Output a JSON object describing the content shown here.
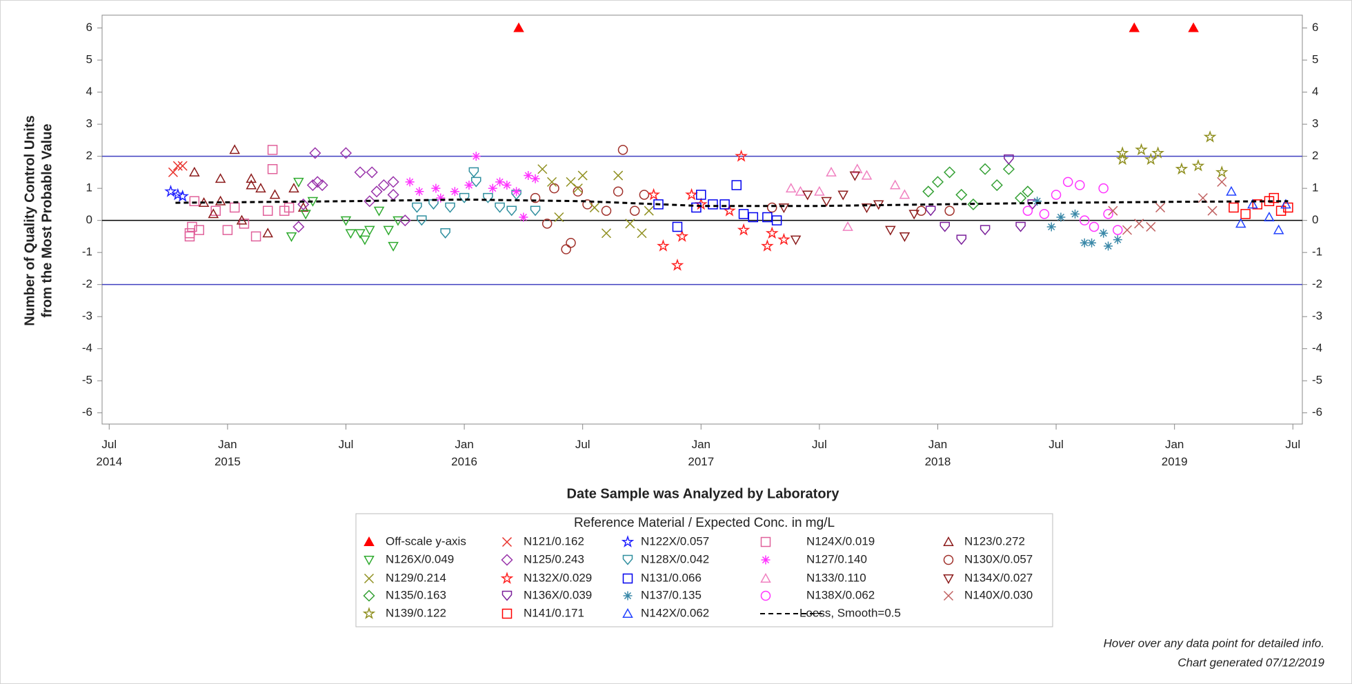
{
  "chart_data": {
    "type": "scatter",
    "y_label": [
      "Number of Quality Control Units",
      "from the Most Probable Value"
    ],
    "x_label": "Date Sample was Analyzed by Laboratory",
    "legend_title": "Reference Material / Expected Conc. in mg/L",
    "notes": [
      "Hover over any data point for detailed info.",
      "Chart generated 07/12/2019"
    ],
    "xlim": [
      2014.47,
      2019.54
    ],
    "ylim": [
      -6.35,
      6.4
    ],
    "xticks": [
      {
        "value": 2014.5,
        "label": "Jul\n2014"
      },
      {
        "value": 2015,
        "label": "Jan\n2015"
      },
      {
        "value": 2015.5,
        "label": "Jul"
      },
      {
        "value": 2016,
        "label": "Jan\n2016"
      },
      {
        "value": 2016.5,
        "label": "Jul"
      },
      {
        "value": 2017,
        "label": "Jan\n2017"
      },
      {
        "value": 2017.5,
        "label": "Jul"
      },
      {
        "value": 2018,
        "label": "Jan\n2018"
      },
      {
        "value": 2018.5,
        "label": "Jul"
      },
      {
        "value": 2019,
        "label": "Jan\n2019"
      },
      {
        "value": 2019.5,
        "label": "Jul"
      }
    ],
    "yticks": [
      -6,
      -5,
      -4,
      -3,
      -2,
      -1,
      0,
      1,
      2,
      3,
      4,
      5,
      6
    ],
    "hlines": [
      {
        "value": 2,
        "color": "#3f3fbf"
      },
      {
        "value": -2,
        "color": "#3f3fbf"
      },
      {
        "value": 0,
        "color": "#000000"
      }
    ],
    "series": [
      {
        "name": "Off-scale y-axis",
        "marker": "triangle-filled",
        "color": "#ff0000",
        "x": [
          2016.23,
          2018.83,
          2019.08
        ],
        "values": [
          6,
          6,
          6
        ]
      },
      {
        "name": "N121/0.162",
        "marker": "x",
        "color": "#e8302a",
        "x": [
          2014.77,
          2014.79,
          2014.81
        ],
        "values": [
          1.5,
          1.7,
          1.7
        ]
      },
      {
        "name": "N122X/0.057",
        "marker": "star",
        "color": "#1f1fff",
        "x": [
          2014.76,
          2014.79,
          2014.81
        ],
        "values": [
          0.9,
          0.8,
          0.75
        ]
      },
      {
        "name": "N124X/0.019",
        "marker": "square",
        "color": "#e0609a",
        "x": [
          2014.84,
          2014.84,
          2014.85,
          2014.86,
          2014.88,
          2014.95,
          2015.0,
          2015.03,
          2015.07,
          2015.12,
          2015.17,
          2015.19,
          2015.19,
          2015.24,
          2015.26
        ],
        "values": [
          -0.5,
          -0.4,
          -0.2,
          0.6,
          -0.3,
          0.3,
          -0.3,
          0.4,
          -0.1,
          -0.5,
          0.3,
          2.2,
          1.6,
          0.3,
          0.4
        ]
      },
      {
        "name": "N123/0.272",
        "marker": "triangle",
        "color": "#8b1a1a",
        "x": [
          2014.86,
          2014.9,
          2014.94,
          2014.97,
          2014.97,
          2015.03,
          2015.06,
          2015.1,
          2015.1,
          2015.14,
          2015.17,
          2015.2,
          2015.28,
          2015.32
        ],
        "values": [
          1.5,
          0.55,
          0.2,
          0.6,
          1.3,
          2.2,
          0.0,
          1.3,
          1.1,
          1.0,
          -0.4,
          0.8,
          1.0,
          0.4
        ]
      },
      {
        "name": "N126X/0.049",
        "marker": "triangle-down",
        "color": "#2eaa2e",
        "x": [
          2015.27,
          2015.3,
          2015.33,
          2015.36,
          2015.5,
          2015.52,
          2015.56,
          2015.58,
          2015.6,
          2015.64,
          2015.68,
          2015.7,
          2015.72
        ],
        "values": [
          -0.5,
          1.2,
          0.2,
          0.6,
          0.0,
          -0.4,
          -0.4,
          -0.6,
          -0.3,
          0.3,
          -0.3,
          -0.8,
          0.0
        ]
      },
      {
        "name": "N125/0.243",
        "marker": "diamond",
        "color": "#9933aa",
        "x": [
          2015.3,
          2015.32,
          2015.36,
          2015.37,
          2015.38,
          2015.4,
          2015.5,
          2015.56,
          2015.6,
          2015.61,
          2015.63,
          2015.66,
          2015.7,
          2015.7,
          2015.75
        ],
        "values": [
          -0.2,
          0.5,
          1.1,
          2.1,
          1.2,
          1.1,
          2.1,
          1.5,
          0.6,
          1.5,
          0.9,
          1.1,
          1.2,
          0.8,
          0.0
        ]
      },
      {
        "name": "N128X/0.042",
        "marker": "shield",
        "color": "#2f8f9f",
        "x": [
          2015.8,
          2015.82,
          2015.87,
          2015.92,
          2015.94,
          2016.0,
          2016.04,
          2016.05,
          2016.1,
          2016.15,
          2016.2,
          2016.22,
          2016.3
        ],
        "values": [
          0.4,
          0.0,
          0.5,
          -0.4,
          0.4,
          0.7,
          1.5,
          1.2,
          0.7,
          0.4,
          0.3,
          0.8,
          0.3
        ]
      },
      {
        "name": "N127/0.140",
        "marker": "asterisk",
        "color": "#ff33ff",
        "x": [
          2015.77,
          2015.81,
          2015.88,
          2015.9,
          2015.96,
          2016.02,
          2016.05,
          2016.12,
          2016.15,
          2016.18,
          2016.22,
          2016.25,
          2016.27,
          2016.3
        ],
        "values": [
          1.2,
          0.9,
          1.0,
          0.7,
          0.9,
          1.1,
          2.0,
          1.0,
          1.2,
          1.1,
          0.9,
          0.1,
          1.4,
          1.3
        ]
      },
      {
        "name": "N130X/0.057",
        "marker": "circle",
        "color": "#a0302a",
        "x": [
          2016.3,
          2016.35,
          2016.38,
          2016.43,
          2016.45,
          2016.48,
          2016.52,
          2016.6,
          2016.65,
          2016.67,
          2016.72,
          2016.76,
          2017.3,
          2017.93,
          2018.05
        ],
        "values": [
          0.7,
          -0.1,
          1.0,
          -0.9,
          -0.7,
          0.9,
          0.5,
          0.3,
          0.9,
          2.2,
          0.3,
          0.8,
          0.4,
          0.3,
          0.3
        ]
      },
      {
        "name": "N129/0.214",
        "marker": "x",
        "color": "#8f8f1f",
        "x": [
          2016.33,
          2016.37,
          2016.4,
          2016.45,
          2016.48,
          2016.5,
          2016.55,
          2016.6,
          2016.65,
          2016.7,
          2016.75,
          2016.78
        ],
        "values": [
          1.6,
          1.2,
          0.1,
          1.2,
          1.0,
          1.4,
          0.4,
          -0.4,
          1.4,
          -0.1,
          -0.4,
          0.3
        ]
      },
      {
        "name": "N132X/0.029",
        "marker": "star",
        "color": "#ff2020",
        "x": [
          2016.8,
          2016.84,
          2016.9,
          2016.92,
          2016.96,
          2017.0,
          2017.12,
          2017.17,
          2017.18,
          2017.28,
          2017.3,
          2017.35
        ],
        "values": [
          0.8,
          -0.8,
          -1.4,
          -0.5,
          0.8,
          0.5,
          0.3,
          2.0,
          -0.3,
          -0.8,
          -0.4,
          -0.6
        ]
      },
      {
        "name": "N131/0.066",
        "marker": "square",
        "color": "#0000ee",
        "x": [
          2016.82,
          2016.9,
          2016.98,
          2017.0,
          2017.05,
          2017.1,
          2017.15,
          2017.18,
          2017.22,
          2017.28,
          2017.32
        ],
        "values": [
          0.5,
          -0.2,
          0.4,
          0.8,
          0.5,
          0.5,
          1.1,
          0.2,
          0.1,
          0.1,
          0.0
        ]
      },
      {
        "name": "N133/0.110",
        "marker": "triangle",
        "color": "#f080c0",
        "x": [
          2017.38,
          2017.42,
          2017.5,
          2017.55,
          2017.62,
          2017.66,
          2017.7,
          2017.82,
          2017.86
        ],
        "values": [
          1.0,
          0.9,
          0.9,
          1.5,
          -0.2,
          1.6,
          1.4,
          1.1,
          0.8
        ]
      },
      {
        "name": "N134X/0.027",
        "marker": "triangle-down",
        "color": "#8b1a1a",
        "x": [
          2017.35,
          2017.4,
          2017.45,
          2017.53,
          2017.6,
          2017.65,
          2017.7,
          2017.75,
          2017.8,
          2017.86,
          2017.9
        ],
        "values": [
          0.4,
          -0.6,
          0.8,
          0.6,
          0.8,
          1.4,
          0.4,
          0.5,
          -0.3,
          -0.5,
          0.2
        ]
      },
      {
        "name": "N135/0.163",
        "marker": "diamond",
        "color": "#33a033",
        "x": [
          2017.96,
          2018.0,
          2018.05,
          2018.1,
          2018.15,
          2018.2,
          2018.25,
          2018.3,
          2018.35,
          2018.38
        ],
        "values": [
          0.9,
          1.2,
          1.5,
          0.8,
          0.5,
          1.6,
          1.1,
          1.6,
          0.7,
          0.9
        ]
      },
      {
        "name": "N136X/0.039",
        "marker": "shield",
        "color": "#7a1f9a",
        "x": [
          2017.97,
          2018.03,
          2018.1,
          2018.2,
          2018.3,
          2018.35,
          2018.4
        ],
        "values": [
          0.3,
          -0.2,
          -0.6,
          -0.3,
          1.9,
          -0.2,
          0.5
        ]
      },
      {
        "name": "N137/0.135",
        "marker": "asterisk",
        "color": "#3a88a8",
        "x": [
          2018.42,
          2018.48,
          2018.52,
          2018.58,
          2018.62,
          2018.65,
          2018.7,
          2018.72,
          2018.76
        ],
        "values": [
          0.6,
          -0.2,
          0.1,
          0.2,
          -0.7,
          -0.7,
          -0.4,
          -0.8,
          -0.6
        ]
      },
      {
        "name": "N138X/0.062",
        "marker": "circle",
        "color": "#ff33ff",
        "x": [
          2018.38,
          2018.45,
          2018.5,
          2018.55,
          2018.6,
          2018.62,
          2018.66,
          2018.7,
          2018.72,
          2018.76
        ],
        "values": [
          0.3,
          0.2,
          0.8,
          1.2,
          1.1,
          0.0,
          -0.2,
          1.0,
          0.2,
          -0.3
        ]
      },
      {
        "name": "N140X/0.030",
        "marker": "x",
        "color": "#c06060",
        "x": [
          2018.74,
          2018.8,
          2018.85,
          2018.9,
          2018.94,
          2019.12,
          2019.16,
          2019.2
        ],
        "values": [
          0.3,
          -0.3,
          -0.1,
          -0.2,
          0.4,
          0.7,
          0.3,
          1.2
        ]
      },
      {
        "name": "N139/0.122",
        "marker": "star",
        "color": "#8f8f1f",
        "x": [
          2018.78,
          2018.78,
          2018.86,
          2018.9,
          2018.93,
          2019.03,
          2019.1,
          2019.15,
          2019.2
        ],
        "values": [
          2.1,
          1.9,
          2.2,
          1.9,
          2.1,
          1.6,
          1.7,
          2.6,
          1.5
        ]
      },
      {
        "name": "N141/0.171",
        "marker": "square",
        "color": "#ff0000",
        "x": [
          2019.25,
          2019.3,
          2019.35,
          2019.4,
          2019.42,
          2019.45,
          2019.48
        ],
        "values": [
          0.4,
          0.2,
          0.5,
          0.6,
          0.7,
          0.3,
          0.4
        ]
      },
      {
        "name": "N142X/0.062",
        "marker": "triangle",
        "color": "#2040ff",
        "x": [
          2019.24,
          2019.28,
          2019.33,
          2019.4,
          2019.44,
          2019.47
        ],
        "values": [
          0.9,
          -0.1,
          0.5,
          0.1,
          -0.3,
          0.5
        ]
      },
      {
        "name": "Loess, Smooth=0.5",
        "marker": "dash",
        "color": "#000000",
        "x": [
          2014.78,
          2015.5,
          2016.0,
          2016.5,
          2017.0,
          2017.5,
          2018.0,
          2018.5,
          2019.0,
          2019.48
        ],
        "values": [
          0.55,
          0.6,
          0.65,
          0.6,
          0.45,
          0.45,
          0.5,
          0.55,
          0.58,
          0.6
        ]
      }
    ]
  }
}
